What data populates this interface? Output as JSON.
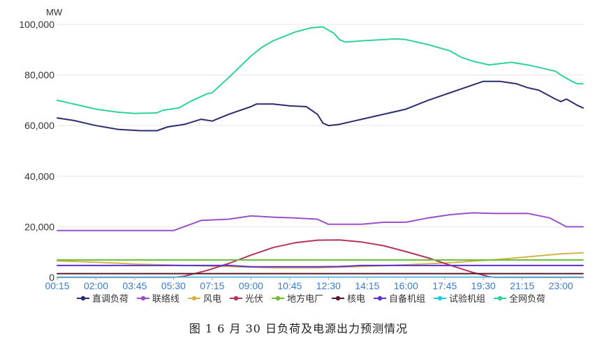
{
  "caption": "图 1   6 月 30 日负荷及电源出力预测情况",
  "chart_data": {
    "type": "line",
    "ylabel": "MW",
    "ylim": [
      0,
      100000
    ],
    "yticks": [
      0,
      20000,
      40000,
      60000,
      80000,
      100000
    ],
    "ytick_labels": [
      "0",
      "20,000",
      "40,000",
      "60,000",
      "80,000",
      "100,000"
    ],
    "x_start": "00:15",
    "x_end": "24:00",
    "x_step_minutes": 15,
    "xtick_labels": [
      "00:15",
      "02:00",
      "03:45",
      "05:30",
      "07:15",
      "09:00",
      "10:45",
      "12:30",
      "14:15",
      "16:00",
      "17:45",
      "19:30",
      "21:15",
      "23:00"
    ],
    "grid": true,
    "legend_position": "bottom",
    "series": [
      {
        "name": "直调负荷",
        "color": "#2b2d6e",
        "points": [
          [
            0.25,
            63000
          ],
          [
            1,
            62000
          ],
          [
            2,
            60000
          ],
          [
            3,
            58500
          ],
          [
            4,
            58000
          ],
          [
            4.75,
            58000
          ],
          [
            5.25,
            59500
          ],
          [
            6,
            60500
          ],
          [
            6.75,
            62500
          ],
          [
            7.25,
            61800
          ],
          [
            8,
            64500
          ],
          [
            9,
            67500
          ],
          [
            9.25,
            68500
          ],
          [
            10,
            68500
          ],
          [
            10.75,
            67800
          ],
          [
            11.5,
            67500
          ],
          [
            12,
            64500
          ],
          [
            12.25,
            61000
          ],
          [
            12.5,
            60000
          ],
          [
            13,
            60500
          ],
          [
            14,
            62500
          ],
          [
            15,
            64500
          ],
          [
            16,
            66500
          ],
          [
            17,
            70000
          ],
          [
            18,
            73000
          ],
          [
            19,
            76000
          ],
          [
            19.5,
            77500
          ],
          [
            20.25,
            77500
          ],
          [
            21,
            76500
          ],
          [
            21.5,
            75000
          ],
          [
            22,
            74000
          ],
          [
            22.75,
            70500
          ],
          [
            23,
            69500
          ],
          [
            23.25,
            70500
          ],
          [
            23.75,
            68000
          ],
          [
            24,
            67000
          ]
        ]
      },
      {
        "name": "联络线",
        "color": "#9b4fc9",
        "points": [
          [
            0.25,
            18500
          ],
          [
            4,
            18500
          ],
          [
            5.5,
            18500
          ],
          [
            6.75,
            22500
          ],
          [
            8,
            23000
          ],
          [
            9,
            24300
          ],
          [
            10,
            23800
          ],
          [
            11,
            23500
          ],
          [
            12,
            23000
          ],
          [
            12.5,
            21000
          ],
          [
            14,
            21000
          ],
          [
            15,
            21800
          ],
          [
            16,
            21800
          ],
          [
            17,
            23500
          ],
          [
            18,
            24800
          ],
          [
            19,
            25500
          ],
          [
            20,
            25300
          ],
          [
            21.5,
            25300
          ],
          [
            22.5,
            23500
          ],
          [
            23.25,
            20000
          ],
          [
            24,
            20000
          ]
        ]
      },
      {
        "name": "风电",
        "color": "#d4b34a",
        "points": [
          [
            0.25,
            6500
          ],
          [
            2,
            6000
          ],
          [
            4,
            5200
          ],
          [
            6,
            4700
          ],
          [
            8,
            4300
          ],
          [
            10,
            3800
          ],
          [
            12,
            3800
          ],
          [
            14,
            4300
          ],
          [
            16,
            5000
          ],
          [
            18,
            5800
          ],
          [
            20,
            7000
          ],
          [
            22,
            8500
          ],
          [
            23,
            9300
          ],
          [
            24,
            9700
          ]
        ]
      },
      {
        "name": "光伏",
        "color": "#b8325e",
        "points": [
          [
            0.25,
            0
          ],
          [
            5.5,
            0
          ],
          [
            6,
            500
          ],
          [
            7,
            2700
          ],
          [
            8,
            5500
          ],
          [
            9,
            8800
          ],
          [
            10,
            11800
          ],
          [
            11,
            13700
          ],
          [
            12,
            14700
          ],
          [
            13,
            14800
          ],
          [
            14,
            14000
          ],
          [
            15,
            12500
          ],
          [
            16,
            10200
          ],
          [
            17,
            7700
          ],
          [
            18,
            4800
          ],
          [
            19,
            2000
          ],
          [
            19.75,
            300
          ],
          [
            20,
            0
          ],
          [
            24,
            0
          ]
        ]
      },
      {
        "name": "地方电厂",
        "color": "#6dbf3b",
        "points": [
          [
            0.25,
            6900
          ],
          [
            24,
            6900
          ]
        ]
      },
      {
        "name": "核电",
        "color": "#5a1a2e",
        "points": [
          [
            0.25,
            1500
          ],
          [
            24,
            1500
          ]
        ]
      },
      {
        "name": "自备机组",
        "color": "#5b2fd6",
        "points": [
          [
            0.25,
            4700
          ],
          [
            8,
            4700
          ],
          [
            9,
            4200
          ],
          [
            10,
            4200
          ],
          [
            11,
            4200
          ],
          [
            12,
            4200
          ],
          [
            13,
            4300
          ],
          [
            14,
            4700
          ],
          [
            24,
            4700
          ]
        ]
      },
      {
        "name": "试验机组",
        "color": "#1ec8e0",
        "points": [
          [
            0.25,
            100
          ],
          [
            24,
            100
          ]
        ]
      },
      {
        "name": "全网负荷",
        "color": "#2ed39a",
        "points": [
          [
            0.25,
            70000
          ],
          [
            1,
            68500
          ],
          [
            2,
            66500
          ],
          [
            3,
            65300
          ],
          [
            3.75,
            64800
          ],
          [
            4.75,
            65000
          ],
          [
            5,
            66000
          ],
          [
            5.75,
            67000
          ],
          [
            6.25,
            69500
          ],
          [
            7,
            72500
          ],
          [
            7.25,
            73000
          ],
          [
            8,
            79000
          ],
          [
            9,
            87500
          ],
          [
            9.5,
            91000
          ],
          [
            10,
            93500
          ],
          [
            11,
            97000
          ],
          [
            11.75,
            98700
          ],
          [
            12.25,
            99000
          ],
          [
            12.75,
            96500
          ],
          [
            13,
            94000
          ],
          [
            13.25,
            93000
          ],
          [
            14,
            93500
          ],
          [
            15,
            94000
          ],
          [
            15.5,
            94300
          ],
          [
            16,
            94000
          ],
          [
            17,
            92000
          ],
          [
            18,
            89500
          ],
          [
            18.5,
            87000
          ],
          [
            19,
            85500
          ],
          [
            19.75,
            84000
          ],
          [
            20.25,
            84500
          ],
          [
            20.75,
            85000
          ],
          [
            21.5,
            84000
          ],
          [
            22,
            83000
          ],
          [
            22.75,
            81500
          ],
          [
            23,
            80000
          ],
          [
            23.5,
            77500
          ],
          [
            23.75,
            76500
          ],
          [
            24,
            76500
          ]
        ]
      }
    ]
  }
}
